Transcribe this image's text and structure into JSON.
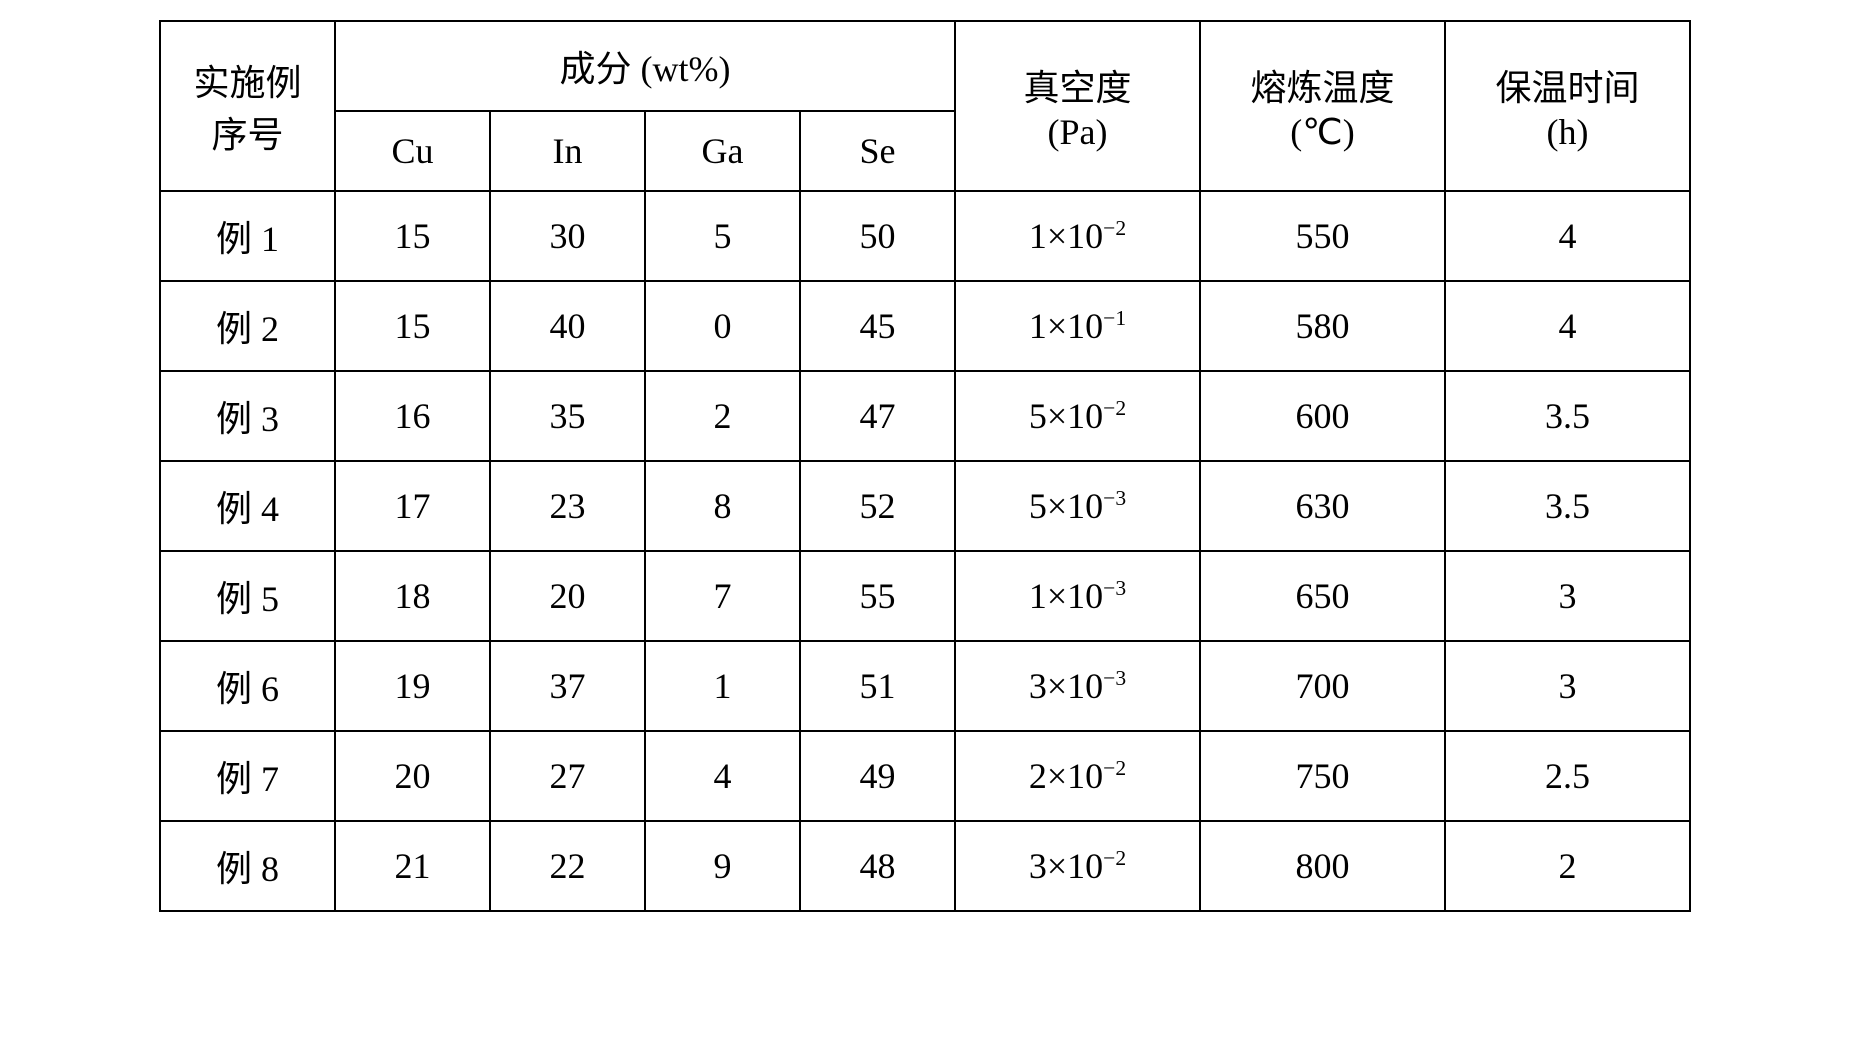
{
  "table": {
    "headers": {
      "example_no": "实施例序号",
      "example_no_line1": "实施例",
      "example_no_line2": "序号",
      "composition": "成分  (wt%)",
      "cu": "Cu",
      "in": "In",
      "ga": "Ga",
      "se": "Se",
      "vacuum": "真空度",
      "vacuum_unit": "(Pa)",
      "melting_temp": "熔炼温度",
      "melting_temp_unit": "(℃)",
      "holding_time": "保温时间",
      "holding_time_unit": "(h)"
    },
    "rows": [
      {
        "example": "例 1",
        "cu": "15",
        "in": "30",
        "ga": "5",
        "se": "50",
        "vacuum_base": "1×10",
        "vacuum_exp": "−2",
        "temp": "550",
        "time": "4"
      },
      {
        "example": "例 2",
        "cu": "15",
        "in": "40",
        "ga": "0",
        "se": "45",
        "vacuum_base": "1×10",
        "vacuum_exp": "−1",
        "temp": "580",
        "time": "4"
      },
      {
        "example": "例 3",
        "cu": "16",
        "in": "35",
        "ga": "2",
        "se": "47",
        "vacuum_base": "5×10",
        "vacuum_exp": "−2",
        "temp": "600",
        "time": "3.5"
      },
      {
        "example": "例 4",
        "cu": "17",
        "in": "23",
        "ga": "8",
        "se": "52",
        "vacuum_base": "5×10",
        "vacuum_exp": "−3",
        "temp": "630",
        "time": "3.5"
      },
      {
        "example": "例 5",
        "cu": "18",
        "in": "20",
        "ga": "7",
        "se": "55",
        "vacuum_base": "1×10",
        "vacuum_exp": "−3",
        "temp": "650",
        "time": "3"
      },
      {
        "example": "例 6",
        "cu": "19",
        "in": "37",
        "ga": "1",
        "se": "51",
        "vacuum_base": "3×10",
        "vacuum_exp": "−3",
        "temp": "700",
        "time": "3"
      },
      {
        "example": "例 7",
        "cu": "20",
        "in": "27",
        "ga": "4",
        "se": "49",
        "vacuum_base": "2×10",
        "vacuum_exp": "−2",
        "temp": "750",
        "time": "2.5"
      },
      {
        "example": "例 8",
        "cu": "21",
        "in": "22",
        "ga": "9",
        "se": "48",
        "vacuum_base": "3×10",
        "vacuum_exp": "−2",
        "temp": "800",
        "time": "2"
      }
    ],
    "styling": {
      "border_color": "#000000",
      "border_width": 2,
      "background_color": "#ffffff",
      "text_color": "#000000",
      "font_size": 36,
      "font_family": "SimSun"
    }
  }
}
